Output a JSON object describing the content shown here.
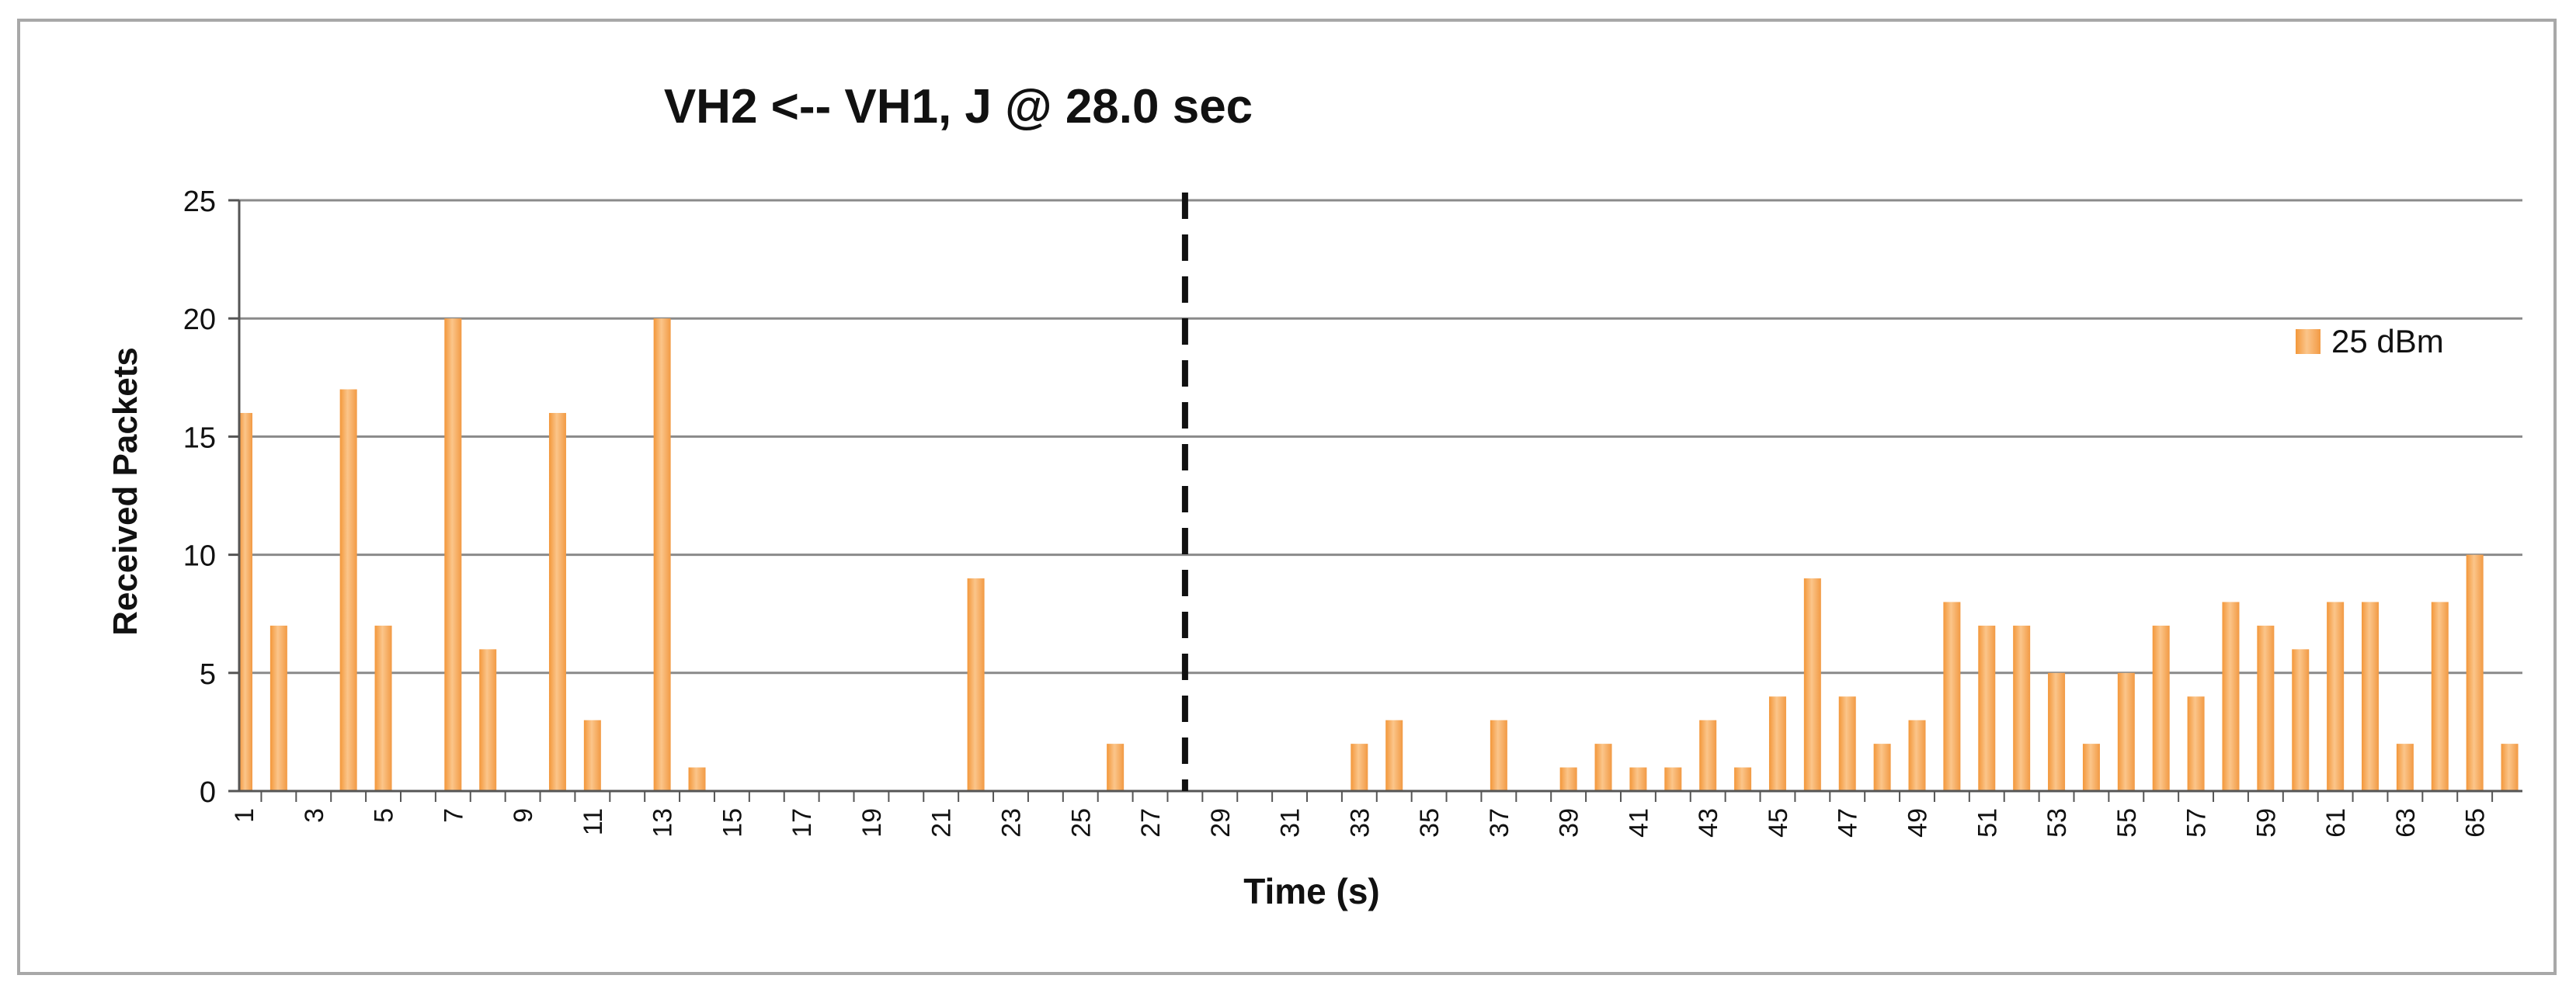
{
  "chart_data": {
    "type": "bar",
    "title": "VH2 <-- VH1, J @ 28.0 sec",
    "xlabel": "Time (s)",
    "ylabel": "Received Packets",
    "ylim": [
      0,
      25
    ],
    "yticks": [
      0,
      5,
      10,
      15,
      20,
      25
    ],
    "grid": true,
    "legend_position": "right",
    "categories": [
      1,
      2,
      3,
      4,
      5,
      6,
      7,
      8,
      9,
      10,
      11,
      12,
      13,
      14,
      15,
      16,
      17,
      18,
      19,
      20,
      21,
      22,
      23,
      24,
      25,
      26,
      27,
      28,
      29,
      30,
      31,
      32,
      33,
      34,
      35,
      36,
      37,
      38,
      39,
      40,
      41,
      42,
      43,
      44,
      45,
      46,
      47,
      48,
      49,
      50,
      51,
      52,
      53,
      54,
      55,
      56,
      57,
      58,
      59,
      60,
      61,
      62,
      63,
      64,
      65,
      66
    ],
    "tick_labels": [
      "1",
      "3",
      "5",
      "7",
      "9",
      "11",
      "13",
      "15",
      "17",
      "19",
      "21",
      "23",
      "25",
      "27",
      "29",
      "31",
      "33",
      "35",
      "37",
      "39",
      "41",
      "43",
      "45",
      "47",
      "49",
      "51",
      "53",
      "55",
      "57",
      "59",
      "61",
      "63",
      "65"
    ],
    "series": [
      {
        "name": "25 dBm",
        "color": "#f5a34a",
        "values": [
          16,
          7,
          0,
          17,
          7,
          0,
          20,
          6,
          0,
          16,
          3,
          0,
          20,
          1,
          0,
          0,
          0,
          0,
          0,
          0,
          0,
          9,
          0,
          0,
          0,
          2,
          0,
          0,
          0,
          0,
          0,
          0,
          2,
          3,
          0,
          0,
          3,
          0,
          1,
          2,
          1,
          1,
          3,
          1,
          4,
          9,
          4,
          2,
          3,
          8,
          7,
          7,
          5,
          2,
          5,
          7,
          4,
          8,
          7,
          6,
          8,
          8,
          2,
          8,
          10,
          2
        ]
      }
    ],
    "annotations": [
      {
        "type": "vertical-dashed-line",
        "x": 28
      }
    ]
  }
}
